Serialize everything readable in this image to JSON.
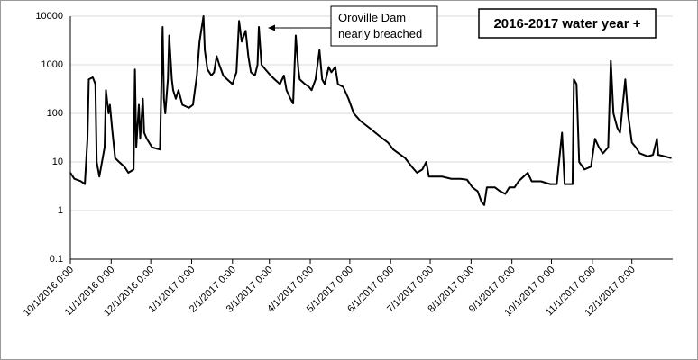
{
  "chart_data": {
    "type": "line",
    "title": "2016-2017 water year +",
    "annotation": [
      "Oroville Dam",
      "nearly breached"
    ],
    "log_scale": true,
    "grid": true,
    "color": "#000000",
    "xlim": [
      "2016-10-01",
      "2018-01-01"
    ],
    "xticks": [
      {
        "value": "2016-10-01",
        "label": "10/1/2016 0:00"
      },
      {
        "value": "2016-11-01",
        "label": "11/1/2016 0:00"
      },
      {
        "value": "2016-12-01",
        "label": "12/1/2016 0:00"
      },
      {
        "value": "2017-01-01",
        "label": "1/1/2017 0:00"
      },
      {
        "value": "2017-02-01",
        "label": "2/1/2017 0:00"
      },
      {
        "value": "2017-03-01",
        "label": "3/1/2017 0:00"
      },
      {
        "value": "2017-04-01",
        "label": "4/1/2017 0:00"
      },
      {
        "value": "2017-05-01",
        "label": "5/1/2017 0:00"
      },
      {
        "value": "2017-06-01",
        "label": "6/1/2017 0:00"
      },
      {
        "value": "2017-07-01",
        "label": "7/1/2017 0:00"
      },
      {
        "value": "2017-08-01",
        "label": "8/1/2017 0:00"
      },
      {
        "value": "2017-09-01",
        "label": "9/1/2017 0:00"
      },
      {
        "value": "2017-10-01",
        "label": "10/1/2017 0:00"
      },
      {
        "value": "2017-11-01",
        "label": "11/1/2017 0:00"
      },
      {
        "value": "2017-12-01",
        "label": "12/1/2017 0:00"
      }
    ],
    "ylim": [
      0.1,
      10000
    ],
    "yticks": [
      0.1,
      1,
      10,
      100,
      1000,
      10000
    ],
    "x": [
      "2016-10-01",
      "2016-10-04",
      "2016-10-09",
      "2016-10-12",
      "2016-10-14",
      "2016-10-15",
      "2016-10-18",
      "2016-10-20",
      "2016-10-21",
      "2016-10-23",
      "2016-10-25",
      "2016-10-27",
      "2016-10-28",
      "2016-10-30",
      "2016-10-31",
      "2016-11-02",
      "2016-11-04",
      "2016-11-07",
      "2016-11-11",
      "2016-11-14",
      "2016-11-18",
      "2016-11-19",
      "2016-11-20",
      "2016-11-22",
      "2016-11-23",
      "2016-11-25",
      "2016-11-26",
      "2016-11-28",
      "2016-12-02",
      "2016-12-08",
      "2016-12-10",
      "2016-12-11",
      "2016-12-12",
      "2016-12-14",
      "2016-12-15",
      "2016-12-17",
      "2016-12-18",
      "2016-12-20",
      "2016-12-22",
      "2016-12-25",
      "2016-12-30",
      "2017-01-02",
      "2017-01-05",
      "2017-01-07",
      "2017-01-10",
      "2017-01-11",
      "2017-01-13",
      "2017-01-16",
      "2017-01-18",
      "2017-01-20",
      "2017-01-22",
      "2017-01-25",
      "2017-01-28",
      "2017-02-01",
      "2017-02-04",
      "2017-02-06",
      "2017-02-08",
      "2017-02-11",
      "2017-02-13",
      "2017-02-15",
      "2017-02-18",
      "2017-02-20",
      "2017-02-21",
      "2017-02-23",
      "2017-02-26",
      "2017-03-02",
      "2017-03-05",
      "2017-03-09",
      "2017-03-12",
      "2017-03-14",
      "2017-03-17",
      "2017-03-19",
      "2017-03-21",
      "2017-03-23",
      "2017-03-24",
      "2017-03-28",
      "2017-03-31",
      "2017-04-02",
      "2017-04-05",
      "2017-04-08",
      "2017-04-10",
      "2017-04-12",
      "2017-04-15",
      "2017-04-17",
      "2017-04-20",
      "2017-04-22",
      "2017-04-26",
      "2017-04-30",
      "2017-05-04",
      "2017-05-09",
      "2017-05-16",
      "2017-05-23",
      "2017-05-30",
      "2017-06-03",
      "2017-06-07",
      "2017-06-12",
      "2017-06-17",
      "2017-06-21",
      "2017-06-25",
      "2017-06-28",
      "2017-06-30",
      "2017-07-04",
      "2017-07-10",
      "2017-07-17",
      "2017-07-24",
      "2017-07-29",
      "2017-08-02",
      "2017-08-06",
      "2017-08-09",
      "2017-08-11",
      "2017-08-13",
      "2017-08-19",
      "2017-08-23",
      "2017-08-27",
      "2017-08-30",
      "2017-09-03",
      "2017-09-06",
      "2017-09-13",
      "2017-09-16",
      "2017-09-23",
      "2017-09-30",
      "2017-10-05",
      "2017-10-09",
      "2017-10-11",
      "2017-10-17",
      "2017-10-18",
      "2017-10-20",
      "2017-10-22",
      "2017-10-26",
      "2017-10-31",
      "2017-11-03",
      "2017-11-06",
      "2017-11-09",
      "2017-11-13",
      "2017-11-15",
      "2017-11-17",
      "2017-11-20",
      "2017-11-22",
      "2017-11-26",
      "2017-11-28",
      "2017-12-01",
      "2017-12-04",
      "2017-12-07",
      "2017-12-13",
      "2017-12-17",
      "2017-12-20",
      "2017-12-21",
      "2017-12-26",
      "2017-12-31"
    ],
    "values": [
      6,
      4.5,
      4,
      3.5,
      30,
      500,
      550,
      400,
      10,
      5,
      10,
      20,
      300,
      100,
      150,
      40,
      12,
      10,
      8,
      6,
      7,
      800,
      20,
      150,
      30,
      200,
      40,
      30,
      20,
      18,
      6000,
      200,
      100,
      500,
      4000,
      500,
      300,
      200,
      300,
      150,
      130,
      150,
      600,
      3000,
      10000,
      2000,
      800,
      600,
      700,
      1500,
      1000,
      600,
      500,
      400,
      700,
      8000,
      3000,
      5000,
      1500,
      700,
      600,
      1000,
      6000,
      1000,
      800,
      600,
      500,
      400,
      600,
      300,
      200,
      160,
      4000,
      800,
      500,
      400,
      350,
      300,
      500,
      2000,
      500,
      400,
      900,
      700,
      900,
      400,
      350,
      200,
      100,
      70,
      50,
      35,
      25,
      18,
      15,
      12,
      8,
      6,
      7,
      10,
      5,
      5,
      5,
      4.5,
      4.5,
      4.3,
      3,
      2.5,
      1.5,
      1.3,
      3,
      3,
      2.5,
      2.2,
      3,
      3,
      4,
      6,
      4,
      4,
      3.5,
      3.5,
      40,
      3.5,
      3.5,
      500,
      400,
      10,
      7,
      8,
      30,
      20,
      15,
      20,
      1200,
      100,
      50,
      40,
      500,
      100,
      25,
      20,
      15,
      13,
      14,
      30,
      14,
      13,
      12
    ]
  }
}
